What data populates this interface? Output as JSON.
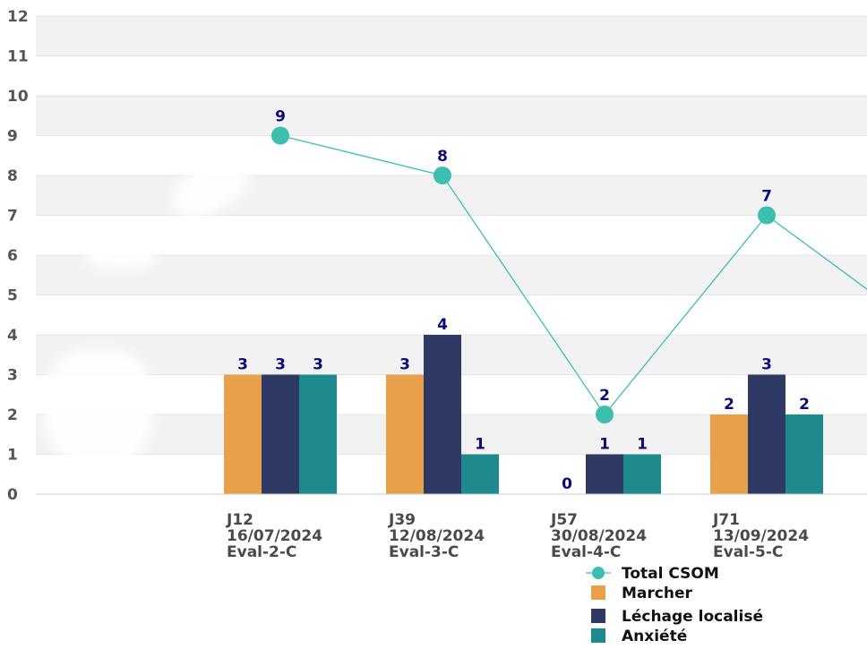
{
  "chart_data": {
    "type": "bar",
    "categories": [
      [
        "J12",
        "16/07/2024",
        "Eval-2-C"
      ],
      [
        "J39",
        "12/08/2024",
        "Eval-3-C"
      ],
      [
        "J57",
        "30/08/2024",
        "Eval-4-C"
      ],
      [
        "J71",
        "13/09/2024",
        "Eval-5-C"
      ]
    ],
    "ylim": [
      0,
      12
    ],
    "yticks": [
      0,
      1,
      2,
      3,
      4,
      5,
      6,
      7,
      8,
      9,
      10,
      11,
      12
    ],
    "series": [
      {
        "name": "Marcher",
        "type": "bar",
        "color": "#e9a04b",
        "values": [
          3,
          3,
          0,
          2
        ]
      },
      {
        "name": "Léchage localisé",
        "type": "bar",
        "color": "#2e3a63",
        "values": [
          3,
          4,
          1,
          3
        ]
      },
      {
        "name": "Anxiété",
        "type": "bar",
        "color": "#1e8a8d",
        "values": [
          3,
          1,
          1,
          2
        ]
      },
      {
        "name": "Total CSOM",
        "type": "line",
        "color": "#3dbfb0",
        "values": [
          9,
          8,
          2,
          7
        ],
        "continues_off_chart_to": 4
      }
    ],
    "legend": {
      "position": "bottom-right",
      "items": [
        "Total CSOM",
        "Marcher",
        "Léchage localisé",
        "Anxiété"
      ]
    },
    "title": "",
    "xlabel": "",
    "ylabel": ""
  }
}
